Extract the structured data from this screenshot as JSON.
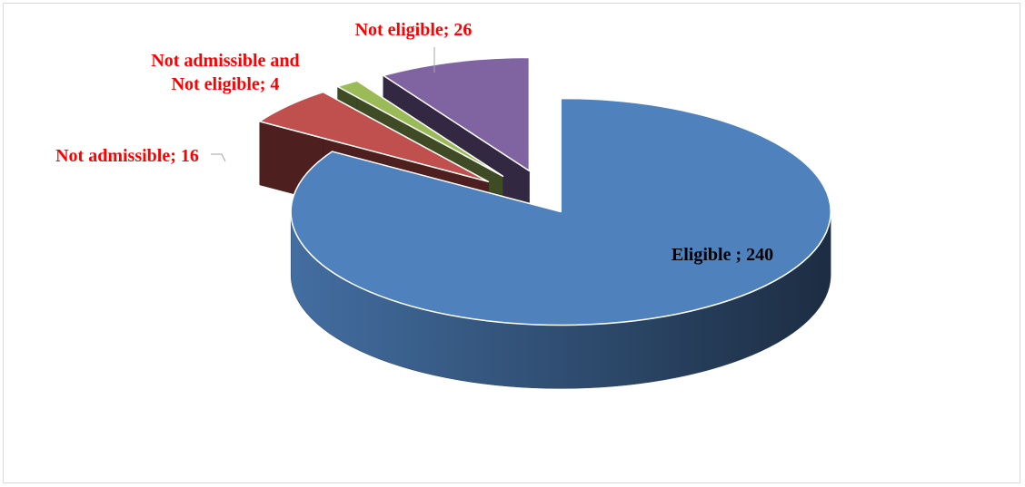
{
  "chart_data": {
    "type": "pie3d",
    "values": [
      240,
      16,
      4,
      26
    ],
    "value_labels": [
      "Eligible ; 240",
      "Not admissible; 16",
      "Not admissible and Not eligible; 4",
      "Not eligible; 26"
    ],
    "colors": [
      "#4f81bd",
      "#c0504d",
      "#9bbb59",
      "#8064a2"
    ]
  }
}
